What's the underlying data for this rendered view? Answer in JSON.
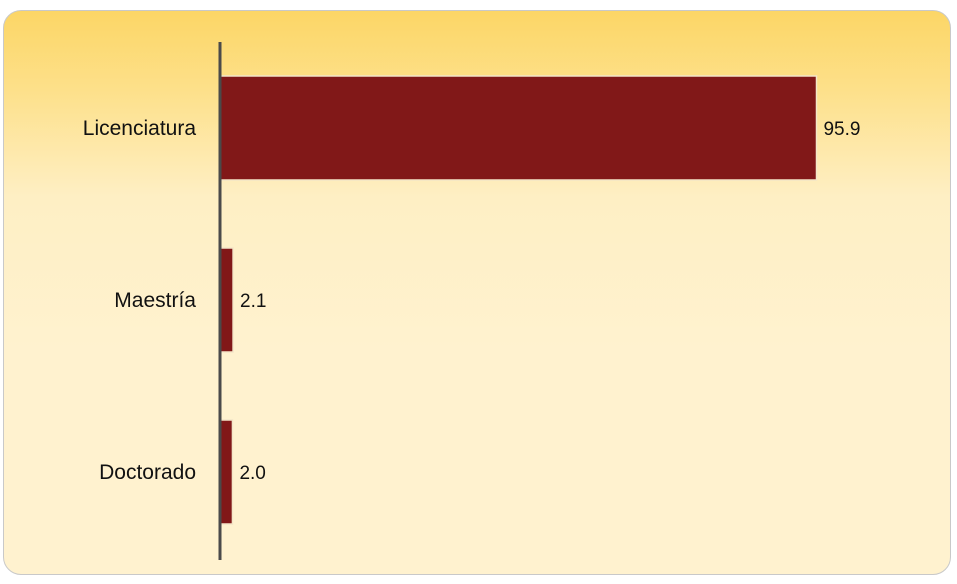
{
  "chart_data": {
    "type": "bar",
    "orientation": "horizontal",
    "categories": [
      "Licenciatura",
      "Maestría",
      "Doctorado"
    ],
    "values": [
      95.9,
      2.1,
      2.0
    ],
    "value_labels": [
      "95.9",
      "2.1",
      "2.0"
    ],
    "title": "",
    "xlabel": "",
    "ylabel": "",
    "xlim": [
      0,
      100
    ],
    "grid": false,
    "legend": "none",
    "colors": {
      "bar": "#811818",
      "bar_edge": "#f4e6c8",
      "axis": "#4a4a4a",
      "background_top": "#fcd666",
      "background_bottom": "#fff2cf",
      "border": "#c9c9c9"
    }
  }
}
